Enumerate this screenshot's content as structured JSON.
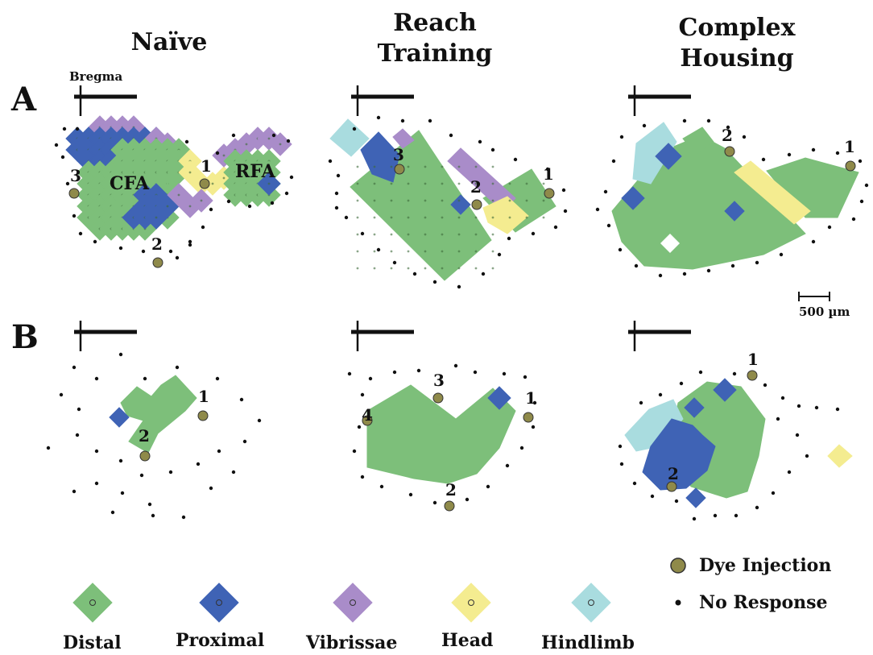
{
  "columns": [
    "Naïve",
    "Reach Training",
    "Complex Housing"
  ],
  "columns_lines": [
    [
      "Naïve"
    ],
    [
      "Reach",
      "Training"
    ],
    [
      "Complex",
      "Housing"
    ]
  ],
  "rows": [
    "A",
    "B"
  ],
  "bregma_label": "Bregma",
  "area_labels": [
    "CFA",
    "RFA"
  ],
  "scale_bar_label": "500 µm",
  "legend": {
    "categories": [
      {
        "label": "Distal",
        "color": "#7dbf7a"
      },
      {
        "label": "Proximal",
        "color": "#3f63b5"
      },
      {
        "label": "Vibrissae",
        "color": "#a98cc9"
      },
      {
        "label": "Head",
        "color": "#f4ec90"
      },
      {
        "label": "Hindlimb",
        "color": "#a9dcdf"
      }
    ],
    "dye_injection": "Dye Injection",
    "no_response": "No Response"
  },
  "dye_color": "#8f8a4a",
  "panels": [
    {
      "id": "A-naive",
      "injections": [
        "1",
        "2",
        "3"
      ]
    },
    {
      "id": "A-reach",
      "injections": [
        "1",
        "2",
        "3"
      ]
    },
    {
      "id": "A-complex",
      "injections": [
        "1",
        "2"
      ]
    },
    {
      "id": "B-naive",
      "injections": [
        "1",
        "2"
      ]
    },
    {
      "id": "B-reach",
      "injections": [
        "1",
        "2",
        "3",
        "4"
      ]
    },
    {
      "id": "B-complex",
      "injections": [
        "1",
        "2"
      ]
    }
  ]
}
